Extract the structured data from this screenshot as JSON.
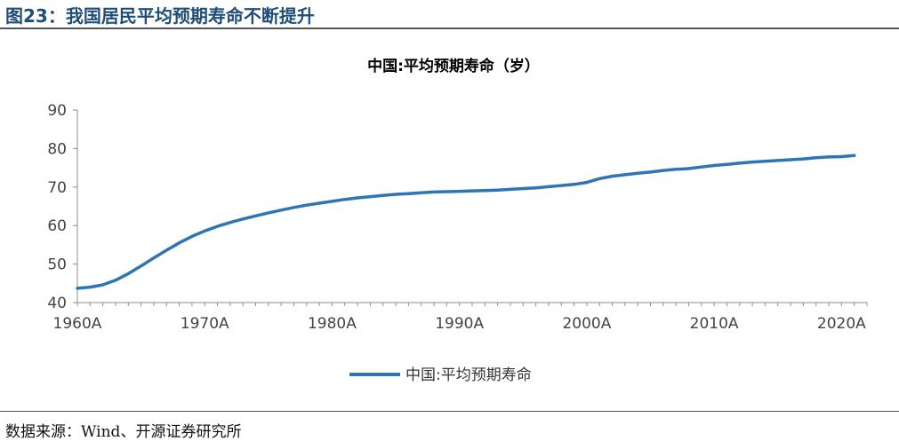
{
  "figure_title": "图23：我国居民平均预期寿命不断提升",
  "source": "数据来源：Wind、开源证券研究所",
  "colors": {
    "series": "#2e75b6",
    "title": "#1f4e79"
  },
  "chart_data": {
    "type": "line",
    "title": "中国:平均预期寿命（岁）",
    "xlabel": "",
    "ylabel": "",
    "ylim": [
      40,
      90
    ],
    "yticks": [
      40,
      50,
      60,
      70,
      80,
      90
    ],
    "xticks": [
      "1960A",
      "1970A",
      "1980A",
      "1990A",
      "2000A",
      "2010A",
      "2020A"
    ],
    "xlim": [
      1960,
      2022
    ],
    "grid": false,
    "legend": "bottom",
    "series": [
      {
        "name": "中国:平均预期寿命",
        "x": [
          1960,
          1961,
          1962,
          1963,
          1964,
          1965,
          1966,
          1967,
          1968,
          1969,
          1970,
          1971,
          1972,
          1973,
          1974,
          1975,
          1976,
          1977,
          1978,
          1979,
          1980,
          1981,
          1982,
          1983,
          1984,
          1985,
          1986,
          1987,
          1988,
          1989,
          1990,
          1991,
          1992,
          1993,
          1994,
          1995,
          1996,
          1997,
          1998,
          1999,
          2000,
          2001,
          2002,
          2003,
          2004,
          2005,
          2006,
          2007,
          2008,
          2009,
          2010,
          2011,
          2012,
          2013,
          2014,
          2015,
          2016,
          2017,
          2018,
          2019,
          2020,
          2021
        ],
        "values": [
          43.7,
          44.0,
          44.6,
          45.8,
          47.5,
          49.5,
          51.6,
          53.6,
          55.5,
          57.2,
          58.6,
          59.8,
          60.8,
          61.7,
          62.5,
          63.3,
          64.0,
          64.7,
          65.3,
          65.8,
          66.3,
          66.8,
          67.2,
          67.5,
          67.8,
          68.1,
          68.3,
          68.5,
          68.7,
          68.8,
          68.9,
          69.0,
          69.1,
          69.2,
          69.4,
          69.6,
          69.8,
          70.1,
          70.4,
          70.7,
          71.2,
          72.2,
          72.8,
          73.2,
          73.6,
          73.9,
          74.3,
          74.6,
          74.8,
          75.2,
          75.6,
          75.9,
          76.2,
          76.5,
          76.7,
          76.9,
          77.1,
          77.3,
          77.6,
          77.8,
          77.9,
          78.2
        ]
      }
    ]
  }
}
